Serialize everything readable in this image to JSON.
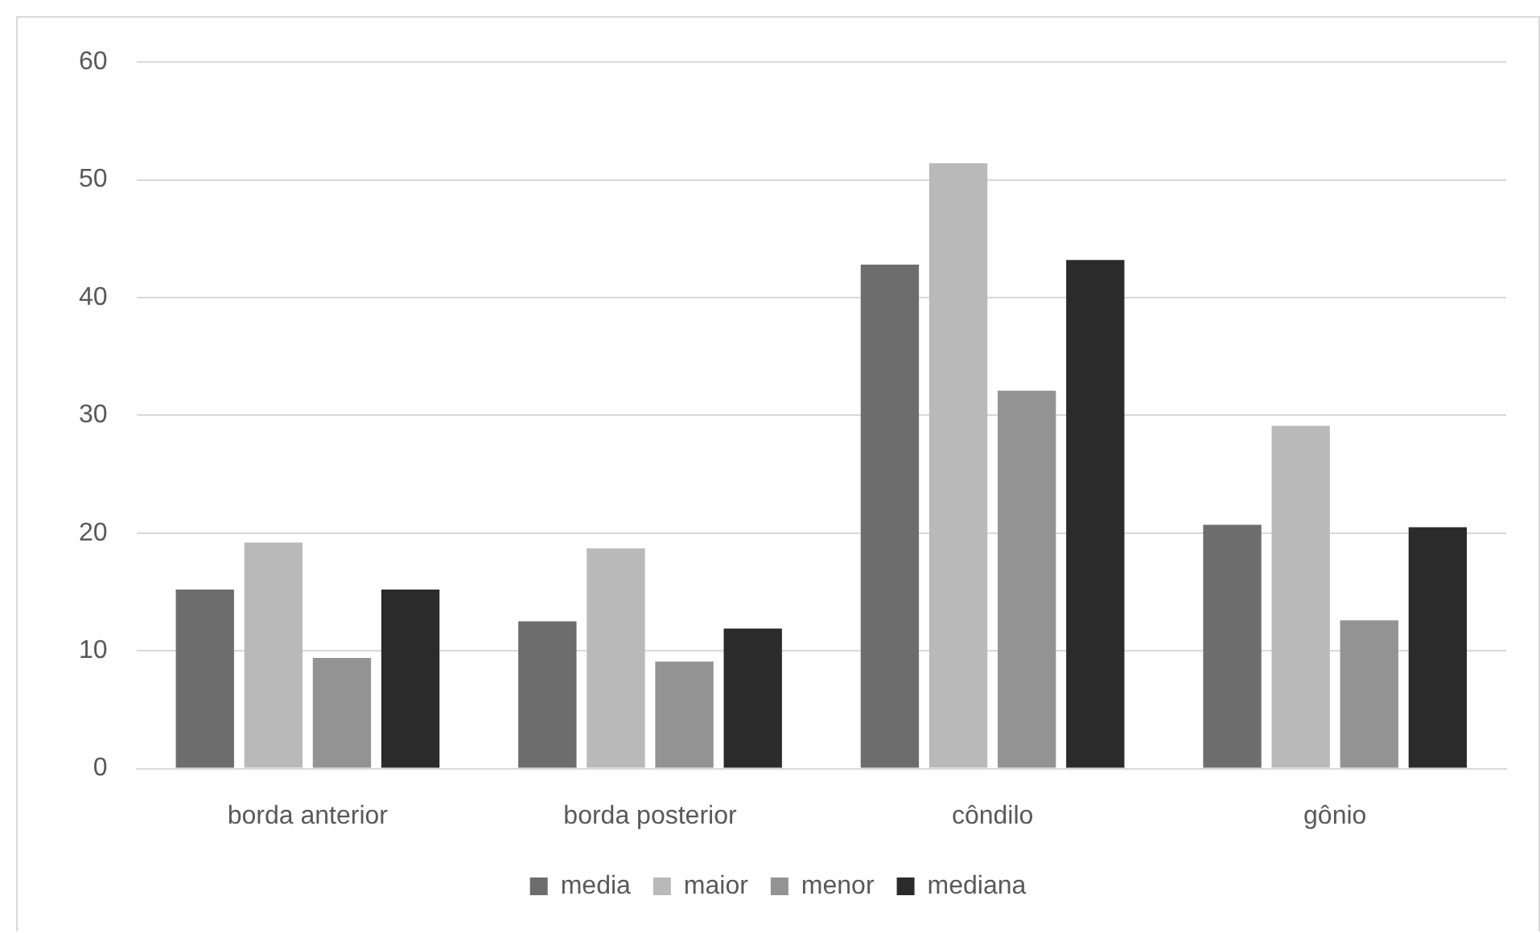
{
  "chart_data": {
    "type": "bar",
    "categories": [
      "borda anterior",
      "borda posterior",
      "côndilo",
      "gônio"
    ],
    "series": [
      {
        "name": "media",
        "color": "#6d6d6d",
        "values": [
          15.2,
          12.5,
          42.8,
          20.7
        ]
      },
      {
        "name": "maior",
        "color": "#b9b9b9",
        "values": [
          19.2,
          18.7,
          51.4,
          29.1
        ]
      },
      {
        "name": "menor",
        "color": "#939393",
        "values": [
          9.4,
          9.1,
          32.1,
          12.6
        ]
      },
      {
        "name": "mediana",
        "color": "#2b2b2b",
        "values": [
          15.2,
          11.9,
          43.2,
          20.5
        ]
      }
    ],
    "ylim": [
      0,
      60
    ],
    "yticks": [
      0,
      10,
      20,
      30,
      40,
      50,
      60
    ],
    "grid": "y",
    "legend": "bottom"
  }
}
